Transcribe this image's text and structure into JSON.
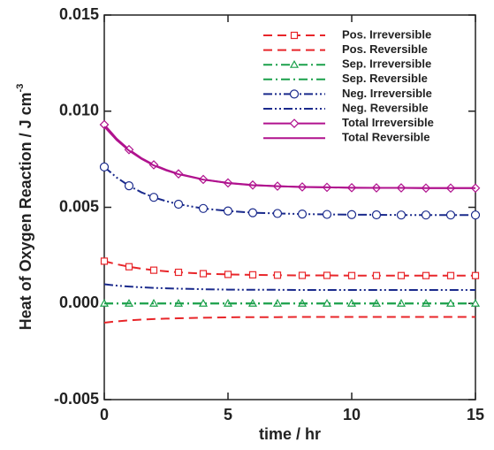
{
  "chart_data": {
    "type": "line",
    "xlabel": "time / hr",
    "ylabel": {
      "text": "Heat of Oxygen Reaction / J cm",
      "superscript": "-3"
    },
    "x": [
      0,
      0.5,
      1,
      1.5,
      2,
      2.5,
      3,
      4,
      5,
      6,
      7,
      8,
      9,
      10,
      11,
      12,
      13,
      14,
      15
    ],
    "xlim": [
      0,
      15
    ],
    "xticks": [
      0,
      5,
      10,
      15
    ],
    "ylim": [
      -0.005,
      0.015
    ],
    "yticks": [
      {
        "value": -0.005,
        "label": "-0.005"
      },
      {
        "value": 0,
        "label": "0.000"
      },
      {
        "value": 0.005,
        "label": "0.005"
      },
      {
        "value": 0.01,
        "label": "0.010"
      },
      {
        "value": 0.015,
        "label": "0.015"
      }
    ],
    "legend": "upper right",
    "series": [
      {
        "name": "Pos. Irreversible",
        "color": "#e8262a",
        "dash": "dashed",
        "marker": "square",
        "values": [
          0.0022,
          0.00204,
          0.00191,
          0.00181,
          0.00173,
          0.00167,
          0.00162,
          0.00155,
          0.00151,
          0.00149,
          0.00147,
          0.00146,
          0.00146,
          0.00145,
          0.00145,
          0.00145,
          0.00145,
          0.00145,
          0.00145
        ]
      },
      {
        "name": "Pos. Reversible",
        "color": "#e8262a",
        "dash": "dashed",
        "marker": "none",
        "values": [
          -0.001,
          -0.00093,
          -0.00088,
          -0.00084,
          -0.00081,
          -0.00079,
          -0.00077,
          -0.00074,
          -0.00072,
          -0.00071,
          -0.00071,
          -0.0007,
          -0.0007,
          -0.0007,
          -0.0007,
          -0.0007,
          -0.0007,
          -0.0007,
          -0.0007
        ]
      },
      {
        "name": "Sep. Irreversible",
        "color": "#1aa04a",
        "dash": "dashdot",
        "marker": "triangle",
        "values": [
          0,
          0,
          0,
          0,
          0,
          0,
          0,
          0,
          0,
          0,
          0,
          0,
          0,
          0,
          0,
          0,
          0,
          0,
          0
        ]
      },
      {
        "name": "Sep. Reversible",
        "color": "#1aa04a",
        "dash": "dashdot",
        "marker": "none",
        "values": [
          0,
          0,
          0,
          0,
          0,
          0,
          0,
          0,
          0,
          0,
          0,
          0,
          0,
          0,
          0,
          0,
          0,
          0,
          0
        ]
      },
      {
        "name": "Neg. Irreversible",
        "color": "#1a2a8c",
        "dash": "dashdotdot",
        "marker": "circle",
        "values": [
          0.0071,
          0.00655,
          0.00612,
          0.00578,
          0.00552,
          0.00532,
          0.00516,
          0.00494,
          0.00481,
          0.00472,
          0.00468,
          0.00465,
          0.00463,
          0.00462,
          0.00461,
          0.0046,
          0.0046,
          0.0046,
          0.0046
        ]
      },
      {
        "name": "Neg. Reversible",
        "color": "#1a2a8c",
        "dash": "dashdotdot",
        "marker": "none",
        "values": [
          0.001,
          0.00093,
          0.00088,
          0.00084,
          0.00081,
          0.00079,
          0.00077,
          0.00074,
          0.00072,
          0.00071,
          0.00071,
          0.0007,
          0.0007,
          0.0007,
          0.0007,
          0.0007,
          0.0007,
          0.0007,
          0.0007
        ]
      },
      {
        "name": "Total Irreversible",
        "color": "#b0128e",
        "dash": "solid",
        "marker": "diamond",
        "values": [
          0.0093,
          0.00857,
          0.008,
          0.00756,
          0.00721,
          0.00695,
          0.00674,
          0.00645,
          0.00627,
          0.00616,
          0.0061,
          0.00606,
          0.00604,
          0.00602,
          0.00601,
          0.00601,
          0.006,
          0.006,
          0.006
        ]
      },
      {
        "name": "Total Reversible",
        "color": "#b0128e",
        "dash": "solid",
        "marker": "none",
        "values": [
          0.0092,
          0.0085,
          0.00795,
          0.00752,
          0.00718,
          0.00692,
          0.00672,
          0.00644,
          0.00626,
          0.00615,
          0.0061,
          0.00606,
          0.00604,
          0.00602,
          0.00601,
          0.00601,
          0.006,
          0.006,
          0.006
        ]
      }
    ]
  }
}
